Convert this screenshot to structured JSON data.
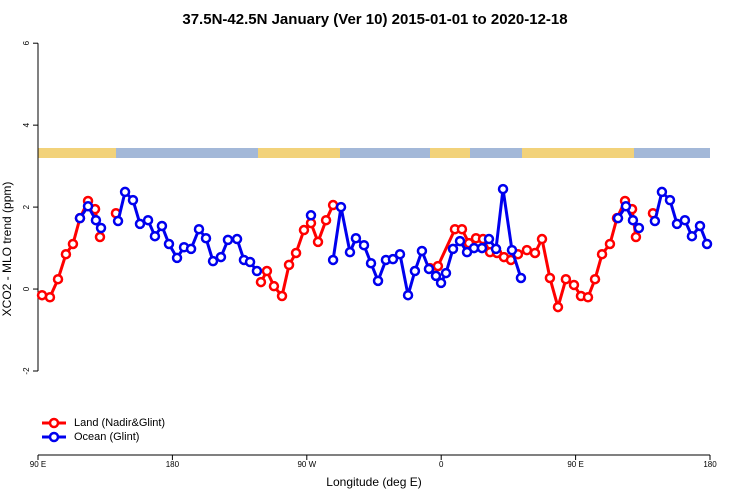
{
  "chart_data": {
    "type": "line",
    "title": "37.5N-42.5N January (Ver 10)   2015-01-01 to 2020-12-18",
    "x_label": "Longitude (deg E)",
    "y_label": "XCO2 - MLO trend (ppm)",
    "xlim": [
      90,
      540
    ],
    "xticks": [
      {
        "value": 90,
        "label": "90 E"
      },
      180,
      {
        "value": 270,
        "label": "90 W"
      },
      {
        "value": 360,
        "label": "0"
      },
      {
        "value": 450,
        "label": "90 E"
      },
      {
        "value": 540,
        "label": "180"
      }
    ],
    "ylim": [
      -4.05,
      6.2
    ],
    "yticks": [
      -2,
      0,
      2,
      4,
      6
    ],
    "legend": "bottomleft",
    "series": [
      {
        "name": "Land (Nadir&Glint)",
        "color": "#ff0000",
        "x": [
          92.7,
          98.0,
          103.4,
          108.7,
          113.4,
          118.1,
          123.5,
          128.2,
          131.5,
          null,
          142.2,
          null,
          239.3,
          243.3,
          248.0,
          253.4,
          258.1,
          262.8,
          268.1,
          272.8,
          277.5,
          282.9,
          287.6,
          null,
          352.5,
          357.8,
          369.2,
          373.9,
          378.6,
          383.3,
          388.0,
          392.7,
          397.4,
          402.0,
          406.7,
          411.4,
          417.4,
          422.8,
          427.5,
          432.8,
          438.2,
          443.5,
          448.9,
          453.6,
          458.3,
          463.0,
          467.7,
          473.0,
          477.7,
          483.1,
          487.8,
          490.4,
          null,
          501.8
        ],
        "values": [
          -0.15,
          -0.2,
          0.24,
          0.85,
          1.1,
          1.73,
          2.15,
          1.95,
          1.27,
          null,
          1.85,
          null,
          0.17,
          0.44,
          0.07,
          -0.17,
          0.59,
          0.88,
          1.44,
          1.61,
          1.15,
          1.68,
          2.05,
          null,
          0.51,
          0.56,
          1.46,
          1.46,
          1.12,
          1.24,
          1.22,
          0.9,
          0.88,
          0.78,
          0.71,
          0.85,
          0.95,
          0.88,
          1.22,
          0.27,
          -0.44,
          0.24,
          0.1,
          -0.17,
          -0.2,
          0.24,
          0.85,
          1.1,
          1.73,
          2.15,
          1.95,
          1.27,
          null,
          1.85
        ]
      },
      {
        "name": "Ocean (Glint)",
        "color": "#0000ee",
        "x": [
          118.1,
          123.5,
          128.8,
          132.2,
          null,
          143.6,
          148.3,
          153.6,
          158.3,
          163.7,
          168.3,
          173.0,
          177.7,
          183.1,
          187.8,
          192.5,
          197.8,
          202.5,
          207.2,
          212.5,
          217.2,
          223.3,
          227.9,
          232.0,
          236.6,
          null,
          272.8,
          null,
          287.6,
          292.9,
          298.9,
          302.9,
          308.3,
          313.0,
          317.7,
          323.0,
          327.7,
          332.4,
          337.8,
          342.4,
          347.1,
          351.8,
          356.5,
          359.9,
          363.2,
          367.9,
          372.6,
          377.3,
          382.0,
          387.3,
          392.0,
          396.7,
          401.4,
          407.4,
          413.4,
          null,
          478.4,
          483.7,
          488.4,
          492.4,
          null,
          503.1,
          507.8,
          513.2,
          517.9,
          523.2,
          527.9,
          533.3,
          538.0
        ],
        "values": [
          1.73,
          2.02,
          1.68,
          1.49,
          null,
          1.66,
          2.37,
          2.17,
          1.59,
          1.68,
          1.29,
          1.54,
          1.1,
          0.76,
          1.02,
          0.98,
          1.46,
          1.24,
          0.68,
          0.78,
          1.2,
          1.22,
          0.71,
          0.66,
          0.44,
          null,
          1.8,
          null,
          0.71,
          2.0,
          0.9,
          1.24,
          1.07,
          0.63,
          0.2,
          0.71,
          0.73,
          0.85,
          -0.15,
          0.44,
          0.93,
          0.49,
          0.32,
          0.15,
          0.39,
          0.98,
          1.17,
          0.9,
          1.0,
          1.0,
          1.22,
          0.98,
          2.44,
          0.95,
          0.27,
          null,
          1.73,
          2.02,
          1.68,
          1.49,
          null,
          1.66,
          2.37,
          2.17,
          1.59,
          1.68,
          1.29,
          1.54,
          1.1
        ]
      }
    ]
  }
}
